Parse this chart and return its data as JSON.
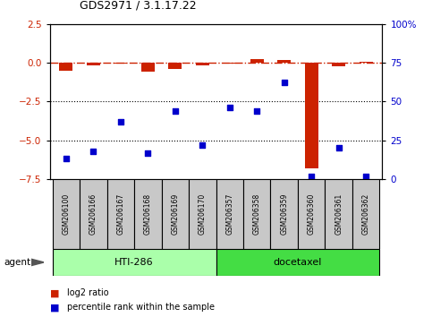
{
  "title": "GDS2971 / 3.1.17.22",
  "samples": [
    "GSM206100",
    "GSM206166",
    "GSM206167",
    "GSM206168",
    "GSM206169",
    "GSM206170",
    "GSM206357",
    "GSM206358",
    "GSM206359",
    "GSM206360",
    "GSM206361",
    "GSM206362"
  ],
  "log2_ratio": [
    -0.5,
    -0.2,
    -0.08,
    -0.6,
    -0.4,
    -0.18,
    -0.07,
    0.22,
    0.18,
    -6.8,
    -0.25,
    0.05
  ],
  "percentile_rank": [
    13,
    18,
    37,
    17,
    44,
    22,
    46,
    44,
    62,
    2,
    20,
    2
  ],
  "ylim_left": [
    -7.5,
    2.5
  ],
  "ylim_right": [
    0,
    100
  ],
  "yticks_left": [
    2.5,
    0.0,
    -2.5,
    -5.0,
    -7.5
  ],
  "yticks_right": [
    100,
    75,
    50,
    25,
    0
  ],
  "hlines_dotted": [
    -2.5,
    -5.0
  ],
  "bar_color": "#CC2200",
  "dot_color": "#0000CC",
  "legend_red": "log2 ratio",
  "legend_blue": "percentile rank within the sample",
  "group_info": [
    {
      "label": "HTI-286",
      "start": 0,
      "end": 5,
      "color": "#AAFFAA"
    },
    {
      "label": "docetaxel",
      "start": 6,
      "end": 11,
      "color": "#44DD44"
    }
  ]
}
